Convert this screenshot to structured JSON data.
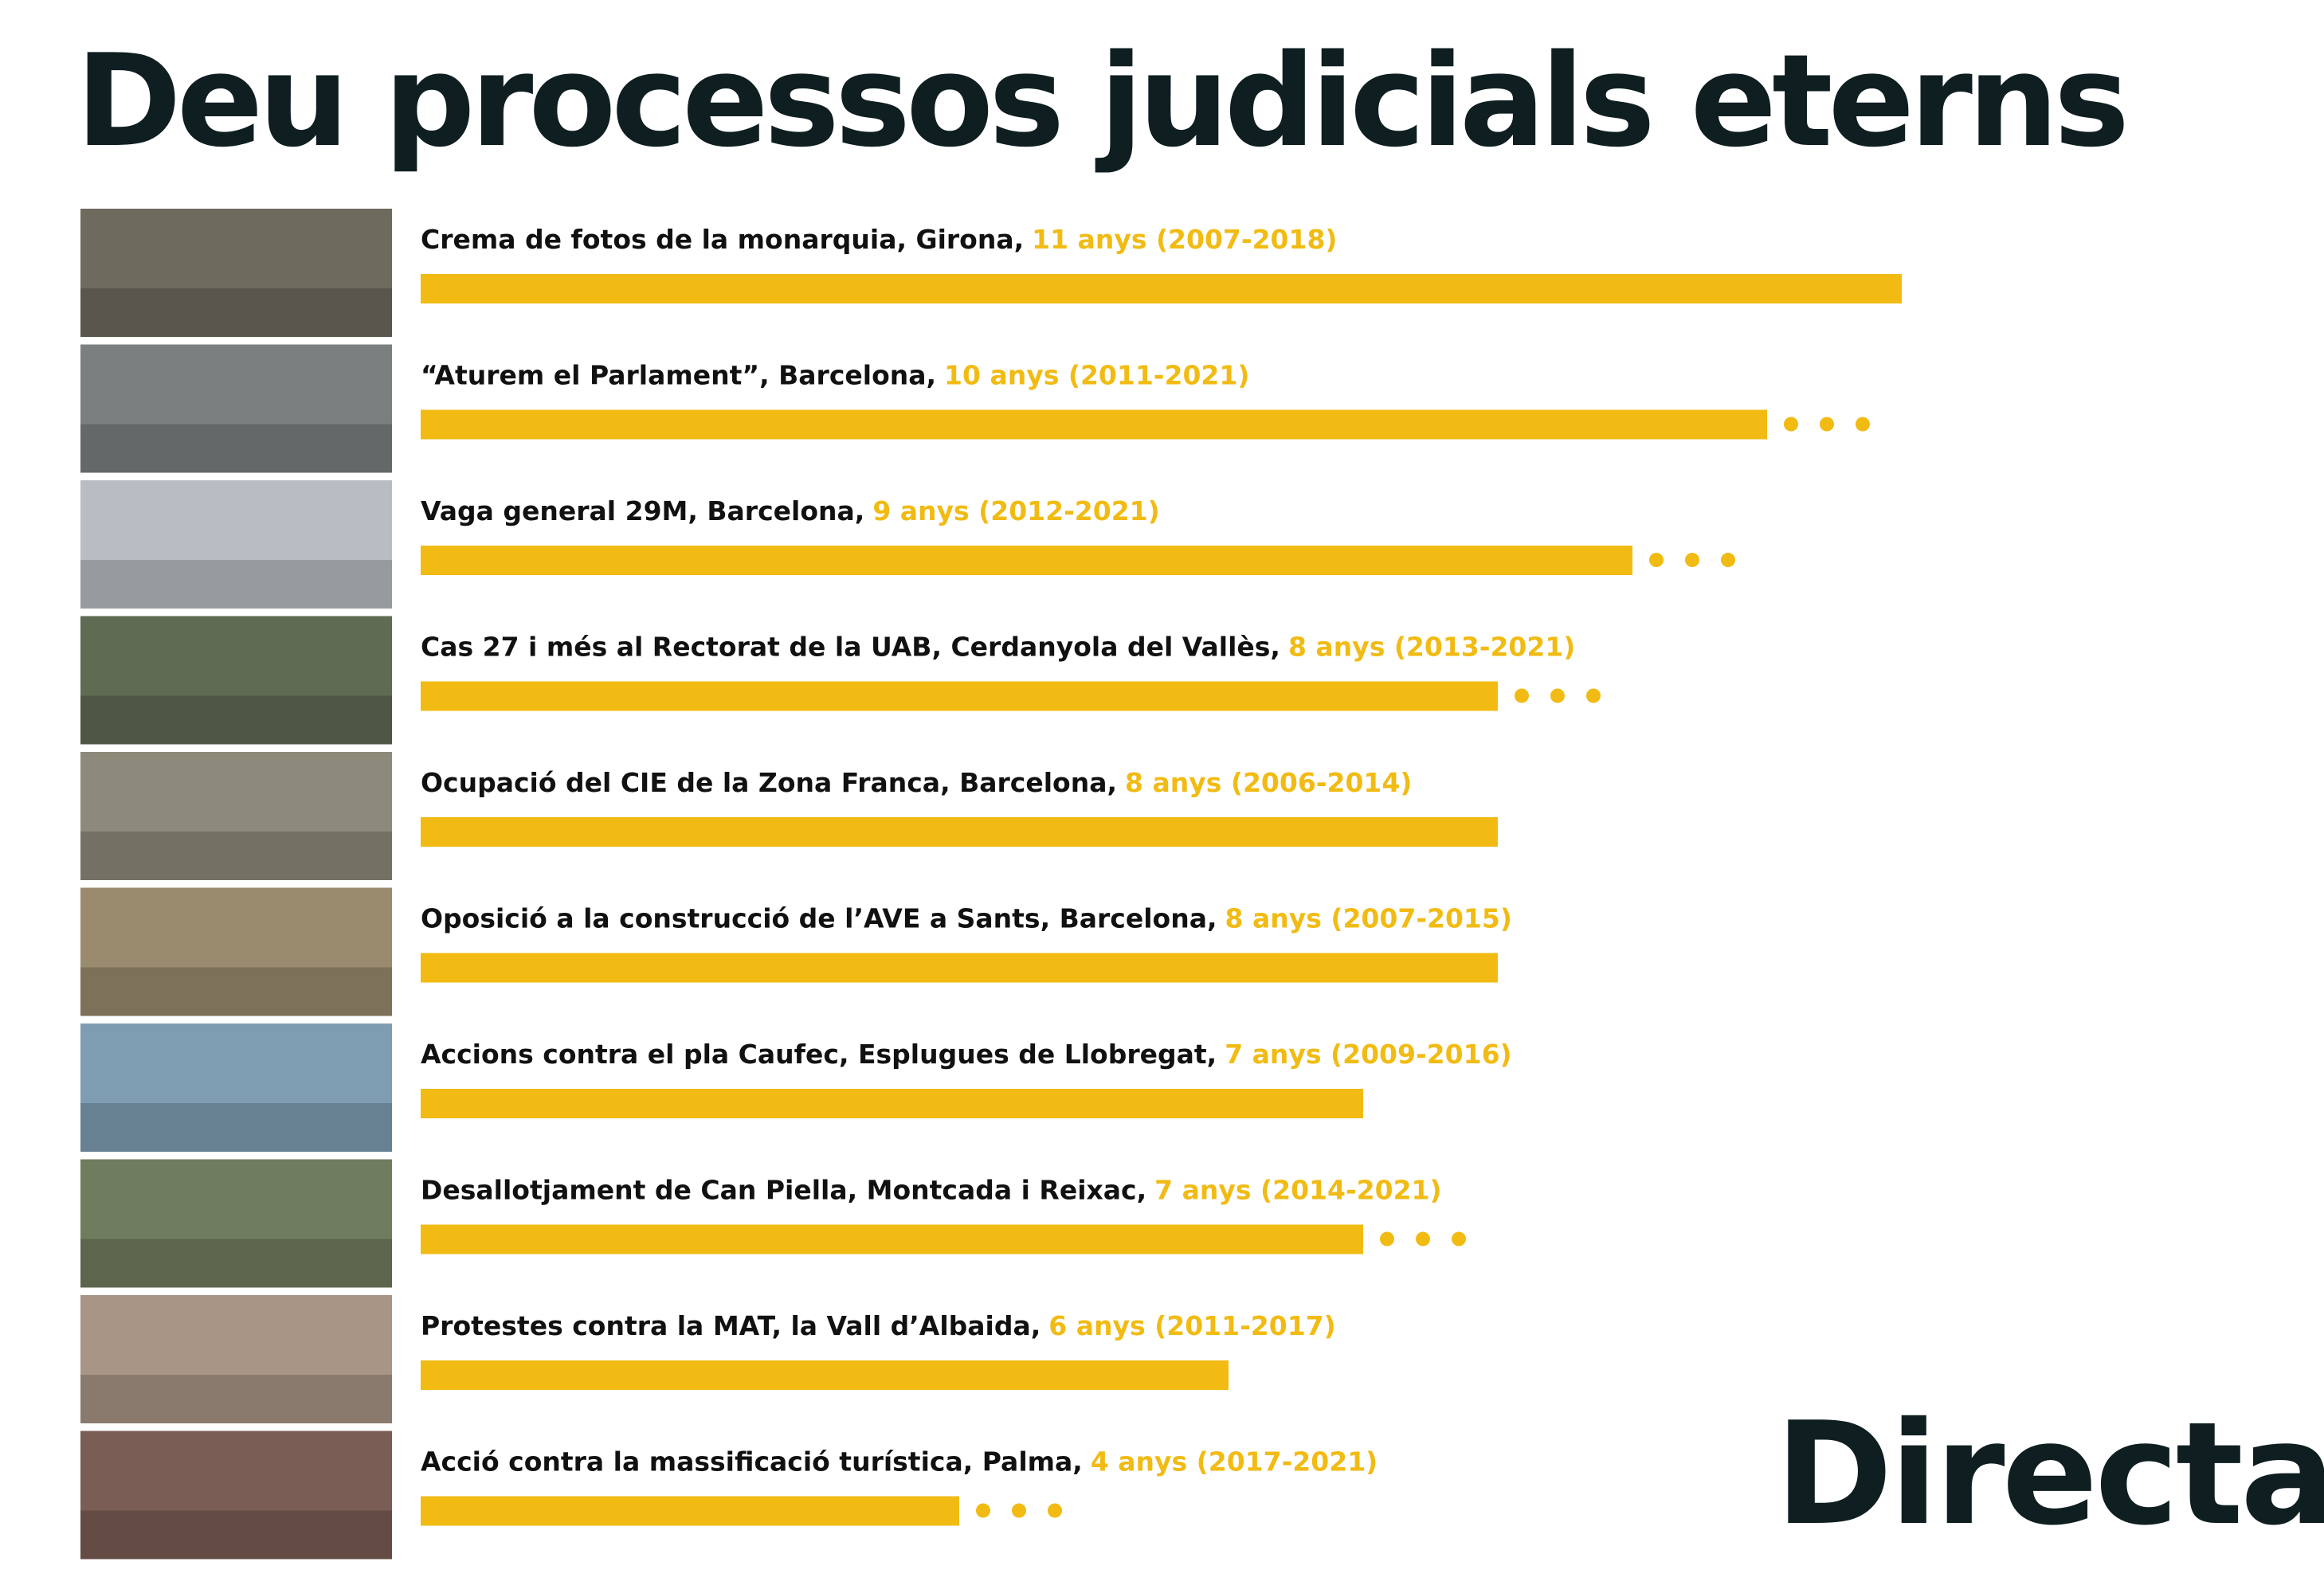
{
  "chart_data": {
    "type": "bar",
    "orientation": "horizontal",
    "title": "Deu processos judicials eterns",
    "categories": [
      "Crema de fotos de la monarquia, Girona,",
      "“Aturem el Parlament”, Barcelona,",
      "Vaga general 29M, Barcelona,",
      "Cas 27 i més al Rectorat de la UAB, Cerdanyola del Vallès,",
      "Ocupació del CIE de la Zona Franca, Barcelona,",
      "Oposició a la construcció de l’AVE a Sants, Barcelona,",
      "Accions contra el pla Caufec, Esplugues de Llobregat,",
      "Desallotjament de Can Piella, Montcada i Reixac,",
      "Protestes contra la MAT, la Vall d’Albaida,",
      "Acció contra la massificació turística, Palma,"
    ],
    "values": [
      11,
      10,
      9,
      8,
      8,
      8,
      7,
      7,
      6,
      4
    ],
    "value_labels": [
      "11 anys (2007-2018)",
      "10 anys (2011-2021)",
      "9 anys (2012-2021)",
      "8 anys (2013-2021)",
      "8 anys (2006-2014)",
      "8 anys (2007-2015)",
      "7 anys (2009-2016)",
      "7 anys (2014-2021)",
      "6 anys (2011-2017)",
      "4 anys (2017-2021)"
    ],
    "ongoing": [
      false,
      true,
      true,
      true,
      false,
      false,
      false,
      true,
      false,
      true
    ],
    "color": "#f1bb13",
    "label_color": "#111111"
  },
  "brand": "Directa"
}
